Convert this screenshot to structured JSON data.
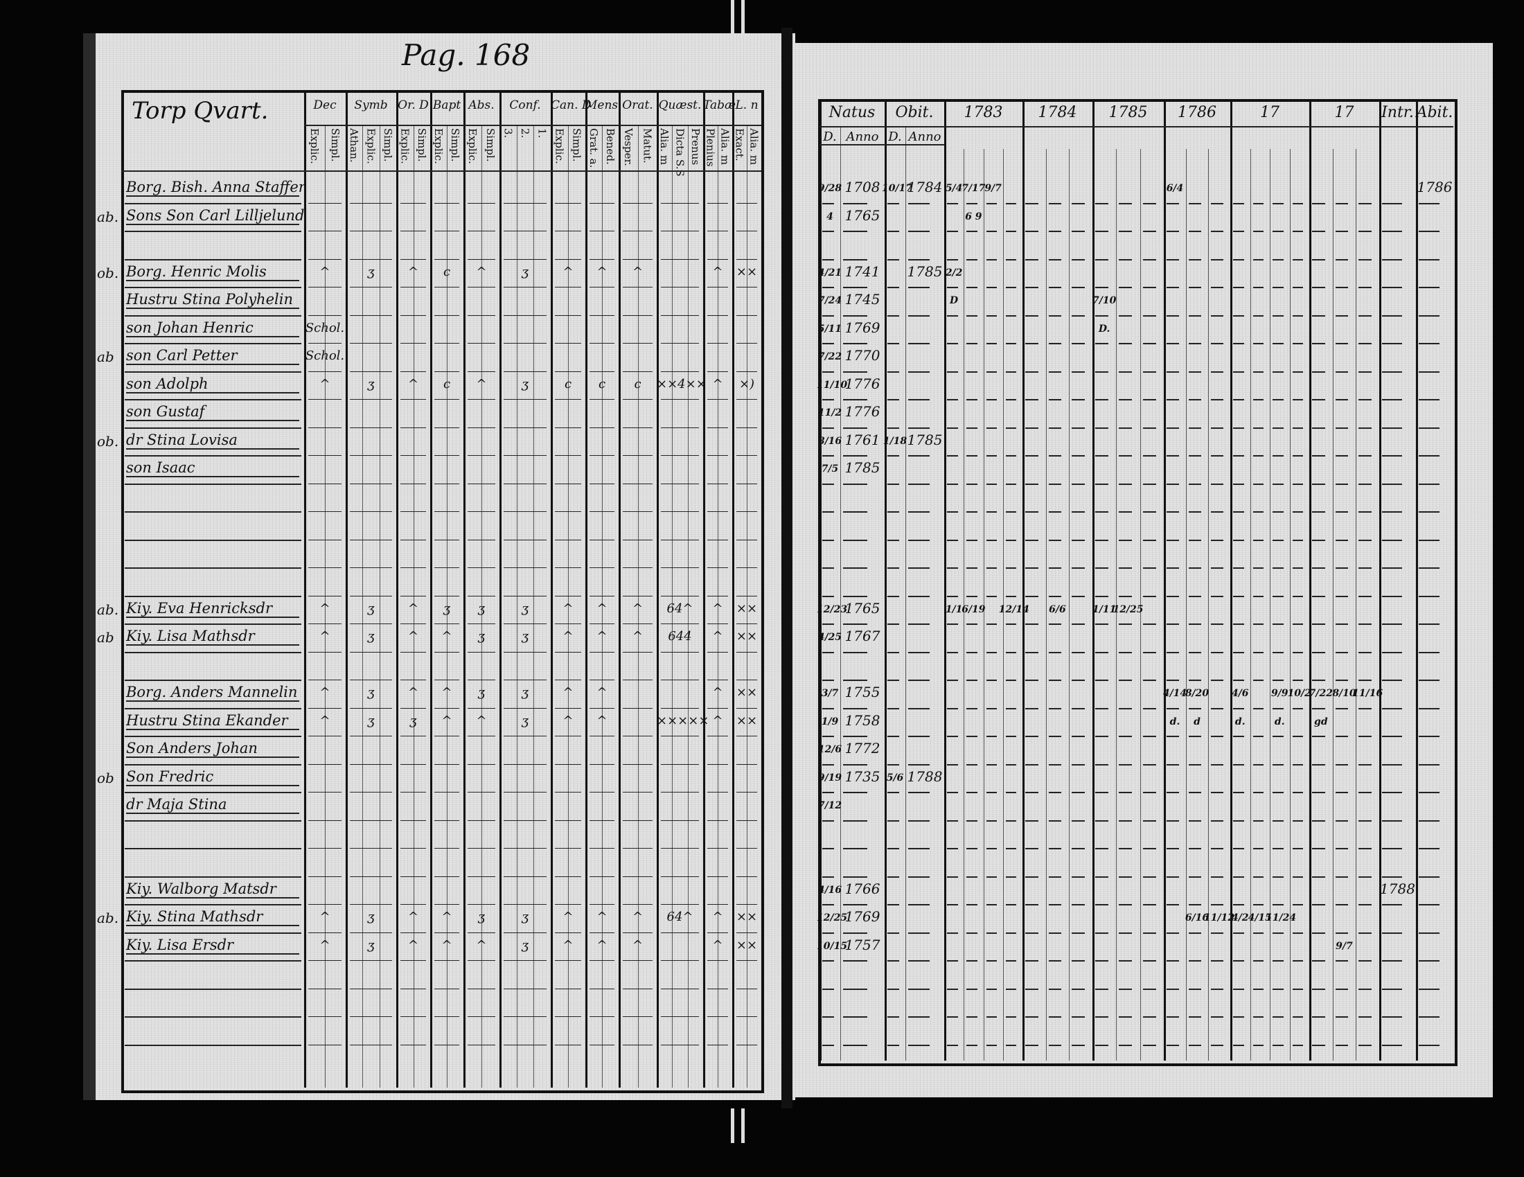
{
  "left_page": {
    "page_number": "Pag. 168",
    "title": "Torp Qvart.",
    "groups": [
      {
        "label": "Dec",
        "subs": [
          "Explic.",
          "Simpl."
        ]
      },
      {
        "label": "Symb",
        "subs": [
          "Athan.",
          "Explic.",
          "Simpl."
        ]
      },
      {
        "label": "Or. D",
        "subs": [
          "Explic.",
          "Simpl."
        ]
      },
      {
        "label": "Bapt",
        "subs": [
          "Explic.",
          "Simpl."
        ]
      },
      {
        "label": "Abs.",
        "subs": [
          "Explic.",
          "Simpl."
        ]
      },
      {
        "label": "Conf.",
        "subs": [
          "3.",
          "2.",
          "1."
        ]
      },
      {
        "label": "Can. D",
        "subs": [
          "Explic.",
          "Simpl."
        ]
      },
      {
        "label": "Mens.",
        "subs": [
          "Grat. a.",
          "Bened."
        ]
      },
      {
        "label": "Orat.",
        "subs": [
          "Vesper.",
          "Matut."
        ]
      },
      {
        "label": "Quæst.",
        "subs": [
          "Alia. m",
          "Dicta S.S",
          "Prenus"
        ]
      },
      {
        "label": "Tabæ",
        "subs": [
          "Plenius",
          "Alia. m"
        ]
      },
      {
        "label": "L. n",
        "subs": [
          "Exact.",
          "Alia. m"
        ]
      }
    ],
    "rows": [
      {
        "row": 0,
        "name": "Borg. Bish. Anna Staffer",
        "margin": "",
        "marks": []
      },
      {
        "row": 1,
        "name": "Sons Son Carl Lilljelund",
        "margin": "ab.",
        "marks": []
      },
      {
        "row": 3,
        "name": "Borg. Henric Molis",
        "margin": "ob.",
        "marks": [
          "^",
          "ʒ",
          "^",
          "c",
          "^",
          "ʒ",
          "^",
          "^",
          "^",
          "",
          "^",
          "××"
        ]
      },
      {
        "row": 4,
        "name": "Hustru Stina Polyhelin",
        "margin": "",
        "marks": []
      },
      {
        "row": 5,
        "name": "son Johan Henric",
        "margin": "",
        "marks": [
          "Schol."
        ]
      },
      {
        "row": 6,
        "name": "son Carl Petter",
        "margin": "ab",
        "marks": [
          "Schol."
        ]
      },
      {
        "row": 7,
        "name": "son Adolph",
        "margin": "",
        "marks": [
          "^",
          "ʒ",
          "^",
          "c",
          "^",
          "ʒ",
          "c",
          "c",
          "c",
          "××4××",
          "^",
          "×)"
        ]
      },
      {
        "row": 8,
        "name": "son Gustaf",
        "margin": "",
        "marks": []
      },
      {
        "row": 9,
        "name": "dr Stina Lovisa",
        "margin": "ob.",
        "marks": []
      },
      {
        "row": 10,
        "name": "son Isaac",
        "margin": "",
        "marks": []
      },
      {
        "row": 15,
        "name": "Kiy. Eva Henricksdr",
        "margin": "ab.",
        "marks": [
          "^",
          "ʒ",
          "^",
          "ʒ",
          "ʒ",
          "ʒ",
          "^",
          "^",
          "^",
          "64^",
          "^",
          "××"
        ]
      },
      {
        "row": 16,
        "name": "Kiy. Lisa Mathsdr",
        "margin": "ab",
        "marks": [
          "^",
          "ʒ",
          "^",
          "^",
          "ʒ",
          "ʒ",
          "^",
          "^",
          "^",
          "644",
          "^",
          "××"
        ]
      },
      {
        "row": 18,
        "name": "Borg. Anders Mannelin",
        "margin": "",
        "marks": [
          "^",
          "ʒ",
          "^",
          "^",
          "ʒ",
          "ʒ",
          "^",
          "^",
          "",
          "",
          "^",
          "××"
        ]
      },
      {
        "row": 19,
        "name": "Hustru Stina Ekander",
        "margin": "",
        "marks": [
          "^",
          "ʒ",
          "ʒ",
          "^",
          "^",
          "ʒ",
          "^",
          "^",
          "",
          "×××××",
          "^",
          "××"
        ]
      },
      {
        "row": 20,
        "name": "Son Anders Johan",
        "margin": "",
        "marks": []
      },
      {
        "row": 21,
        "name": "Son Fredric",
        "margin": "ob",
        "marks": []
      },
      {
        "row": 22,
        "name": "dr Maja Stina",
        "margin": "",
        "marks": []
      },
      {
        "row": 25,
        "name": "Kiy. Walborg Matsdr",
        "margin": "",
        "marks": []
      },
      {
        "row": 26,
        "name": "Kiy. Stina Mathsdr",
        "margin": "ab.",
        "marks": [
          "^",
          "ʒ",
          "^",
          "^",
          "ʒ",
          "ʒ",
          "^",
          "^",
          "^",
          "64^",
          "^",
          "××"
        ]
      },
      {
        "row": 27,
        "name": "Kiy. Lisa Ersdr",
        "margin": "",
        "marks": [
          "^",
          "ʒ",
          "^",
          "^",
          "^",
          "ʒ",
          "^",
          "^",
          "^",
          "",
          "^",
          "××"
        ]
      }
    ]
  },
  "right_page": {
    "groups": [
      {
        "label": "Natus",
        "subs": [
          "D.",
          "Anno"
        ]
      },
      {
        "label": "Obit.",
        "subs": [
          "D.",
          "Anno"
        ]
      },
      {
        "label": "1783",
        "subs": []
      },
      {
        "label": "1784",
        "subs": []
      },
      {
        "label": "1785",
        "subs": []
      },
      {
        "label": "1786",
        "subs": []
      },
      {
        "label": "17",
        "subs": []
      },
      {
        "label": "17",
        "subs": []
      },
      {
        "label": "Intr.",
        "subs": []
      },
      {
        "label": "Abit.",
        "subs": []
      }
    ],
    "rows": [
      {
        "row": 0,
        "natus_d": "9/28",
        "natus_anno": "1708",
        "obit_d": "10/17",
        "obit_anno": "1784"
      },
      {
        "row": 1,
        "natus_d": "4",
        "natus_anno": "1765",
        "obit_d": "",
        "obit_anno": ""
      },
      {
        "row": 3,
        "natus_d": "4/21",
        "natus_anno": "1741",
        "obit_d": "",
        "obit_anno": "1785"
      },
      {
        "row": 4,
        "natus_d": "7/24",
        "natus_anno": "1745",
        "obit_d": "",
        "obit_anno": ""
      },
      {
        "row": 5,
        "natus_d": "5/11",
        "natus_anno": "1769",
        "obit_d": "",
        "obit_anno": ""
      },
      {
        "row": 6,
        "natus_d": "7/22",
        "natus_anno": "1770",
        "obit_d": "",
        "obit_anno": ""
      },
      {
        "row": 7,
        "natus_d": "11/10",
        "natus_anno": "1776",
        "obit_d": "",
        "obit_anno": ""
      },
      {
        "row": 8,
        "natus_d": "11/2",
        "natus_anno": "1776",
        "obit_d": "",
        "obit_anno": ""
      },
      {
        "row": 9,
        "natus_d": "8/16",
        "natus_anno": "1761",
        "obit_d": "1/18",
        "obit_anno": "1785"
      },
      {
        "row": 10,
        "natus_d": "7/5",
        "natus_anno": "1785",
        "obit_d": "",
        "obit_anno": ""
      },
      {
        "row": 15,
        "natus_d": "12/23",
        "natus_anno": "1765",
        "obit_d": "",
        "obit_anno": ""
      },
      {
        "row": 16,
        "natus_d": "4/25",
        "natus_anno": "1767",
        "obit_d": "",
        "obit_anno": ""
      },
      {
        "row": 18,
        "natus_d": "3/7",
        "natus_anno": "1755",
        "obit_d": "",
        "obit_anno": ""
      },
      {
        "row": 19,
        "natus_d": "1/9",
        "natus_anno": "1758",
        "obit_d": "",
        "obit_anno": ""
      },
      {
        "row": 20,
        "natus_d": "12/6",
        "natus_anno": "1772",
        "obit_d": "",
        "obit_anno": ""
      },
      {
        "row": 21,
        "natus_d": "9/19",
        "natus_anno": "1735",
        "obit_d": "5/6",
        "obit_anno": "1788"
      },
      {
        "row": 22,
        "natus_d": "7/12",
        "natus_anno": "",
        "obit_d": "",
        "obit_anno": ""
      },
      {
        "row": 25,
        "natus_d": "4/16",
        "natus_anno": "1766",
        "obit_d": "",
        "obit_anno": ""
      },
      {
        "row": 26,
        "natus_d": "12/25",
        "natus_anno": "1769",
        "obit_d": "",
        "obit_anno": ""
      },
      {
        "row": 27,
        "natus_d": "10/15",
        "natus_anno": "1757",
        "obit_d": "",
        "obit_anno": ""
      }
    ],
    "year_marks": [
      {
        "row": 0,
        "group": 2,
        "sub": 0,
        "text": "5/4"
      },
      {
        "row": 0,
        "group": 2,
        "sub": 1,
        "text": "7/17"
      },
      {
        "row": 0,
        "group": 2,
        "sub": 2,
        "text": "9/7"
      },
      {
        "row": 1,
        "group": 2,
        "sub": 1,
        "text": "6 9"
      },
      {
        "row": 0,
        "group": 5,
        "sub": 0,
        "text": "6/4"
      },
      {
        "row": 0,
        "group": 9,
        "sub": 0,
        "text": "1786"
      },
      {
        "row": 3,
        "group": 2,
        "sub": 0,
        "text": "2/2"
      },
      {
        "row": 4,
        "group": 4,
        "sub": 0,
        "text": "7/10"
      },
      {
        "row": 4,
        "group": 2,
        "sub": 0,
        "text": "D"
      },
      {
        "row": 5,
        "group": 4,
        "sub": 0,
        "text": "D."
      },
      {
        "row": 15,
        "group": 2,
        "sub": 0,
        "text": "1/1"
      },
      {
        "row": 15,
        "group": 2,
        "sub": 1,
        "text": "6/19"
      },
      {
        "row": 15,
        "group": 2,
        "sub": 3,
        "text": "12/14"
      },
      {
        "row": 15,
        "group": 3,
        "sub": 1,
        "text": "6/6"
      },
      {
        "row": 15,
        "group": 4,
        "sub": 0,
        "text": "1/11"
      },
      {
        "row": 15,
        "group": 4,
        "sub": 1,
        "text": "12/25"
      },
      {
        "row": 18,
        "group": 5,
        "sub": 0,
        "text": "4/14"
      },
      {
        "row": 18,
        "group": 5,
        "sub": 1,
        "text": "8/20"
      },
      {
        "row": 18,
        "group": 6,
        "sub": 0,
        "text": "4/6"
      },
      {
        "row": 18,
        "group": 6,
        "sub": 2,
        "text": "9/9"
      },
      {
        "row": 18,
        "group": 6,
        "sub": 3,
        "text": "10/2"
      },
      {
        "row": 18,
        "group": 7,
        "sub": 0,
        "text": "7/22"
      },
      {
        "row": 18,
        "group": 7,
        "sub": 1,
        "text": "8/10"
      },
      {
        "row": 18,
        "group": 7,
        "sub": 2,
        "text": "11/16"
      },
      {
        "row": 19,
        "group": 5,
        "sub": 0,
        "text": "d."
      },
      {
        "row": 19,
        "group": 5,
        "sub": 1,
        "text": "d"
      },
      {
        "row": 19,
        "group": 6,
        "sub": 0,
        "text": "d."
      },
      {
        "row": 19,
        "group": 6,
        "sub": 2,
        "text": "d."
      },
      {
        "row": 19,
        "group": 7,
        "sub": 0,
        "text": "gd"
      },
      {
        "row": 26,
        "group": 5,
        "sub": 1,
        "text": "6/16"
      },
      {
        "row": 26,
        "group": 5,
        "sub": 2,
        "text": "11/12"
      },
      {
        "row": 26,
        "group": 6,
        "sub": 0,
        "text": "4/2"
      },
      {
        "row": 26,
        "group": 6,
        "sub": 1,
        "text": "4/15"
      },
      {
        "row": 26,
        "group": 6,
        "sub": 2,
        "text": "11/24"
      },
      {
        "row": 27,
        "group": 7,
        "sub": 1,
        "text": "9/7"
      },
      {
        "row": 25,
        "group": 8,
        "sub": 0,
        "text": "1788"
      }
    ]
  },
  "colors": {
    "paper": "#e2e2e2",
    "ink": "#111111",
    "background": "#050505"
  }
}
